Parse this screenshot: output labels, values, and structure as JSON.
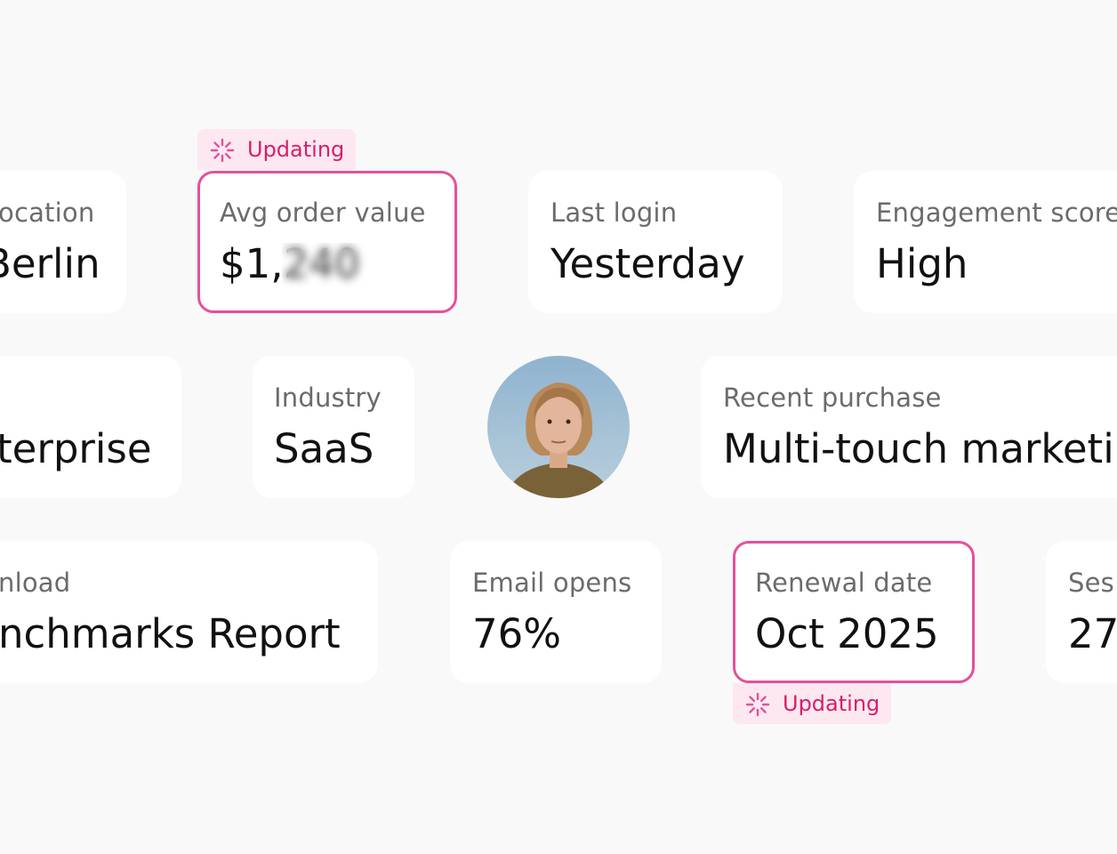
{
  "cards": [
    {
      "label": "ocation",
      "value": "Berlin"
    },
    {
      "label": "Avg order value",
      "value": "$1,240"
    },
    {
      "label": "Last login",
      "value": "Yesterday"
    },
    {
      "label": "Engagement score",
      "value": "High"
    },
    {
      "label": "",
      "value": "terprise"
    },
    {
      "label": "Industry",
      "value": "SaaS"
    },
    {
      "label": "Recent purchase",
      "value": "Multi-touch marketi"
    },
    {
      "label": "nload",
      "value": "nchmarks Report"
    },
    {
      "label": "Email opens",
      "value": "76%"
    },
    {
      "label": "Renewal date",
      "value": "Oct 2025"
    },
    {
      "label": "Ses",
      "value": "27"
    }
  ],
  "badges": [
    {
      "text": "Updating"
    },
    {
      "text": "Updating"
    }
  ]
}
